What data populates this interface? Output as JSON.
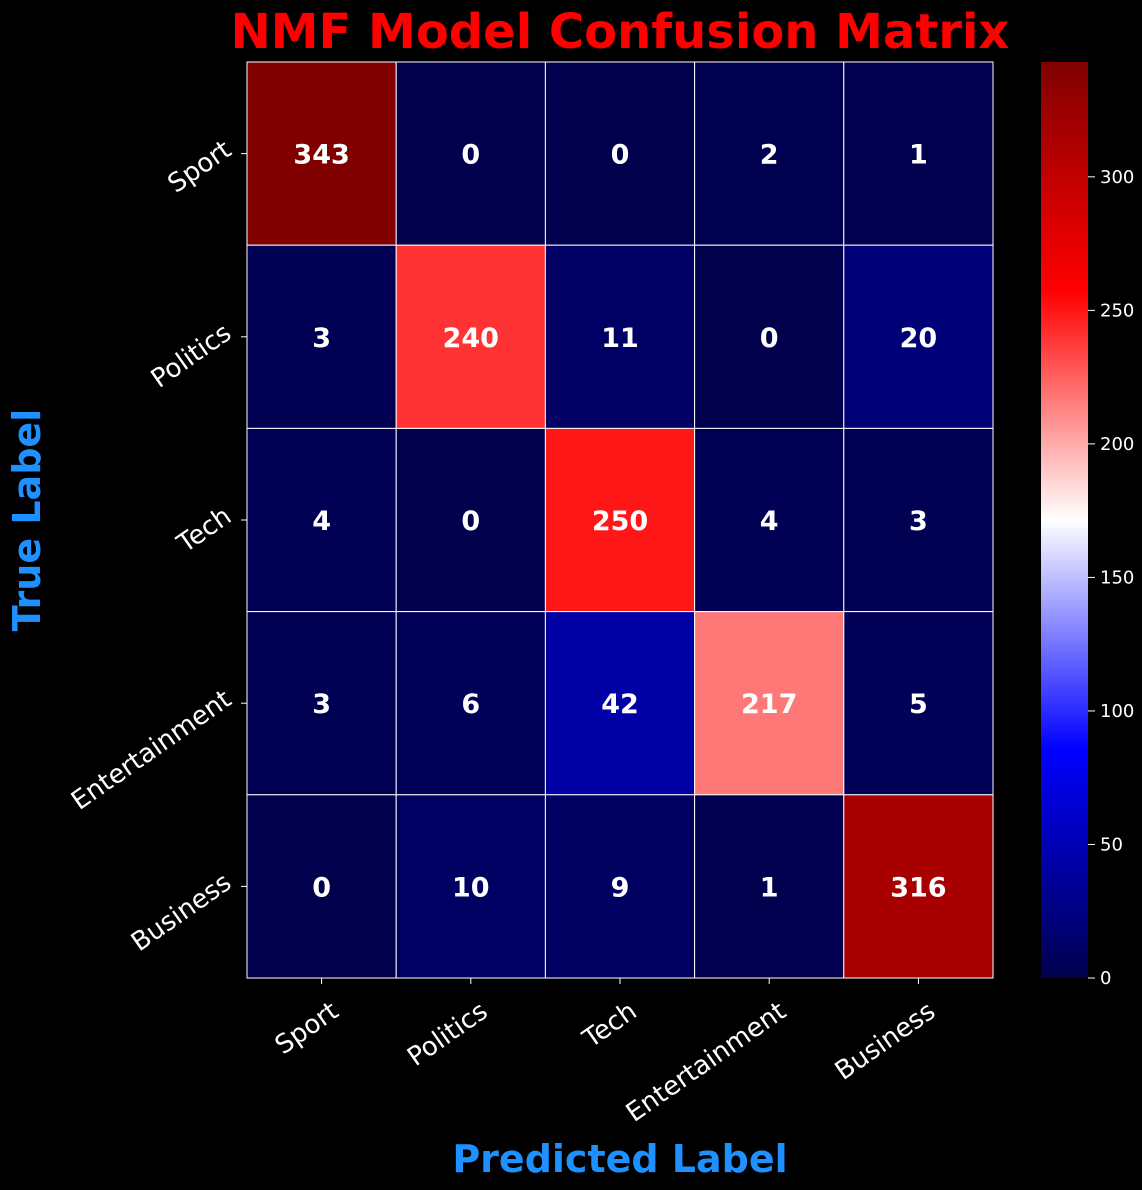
{
  "chart_data": {
    "type": "heatmap",
    "title": "NMF Model Confusion Matrix",
    "xlabel": "Predicted Label",
    "ylabel": "True Label",
    "x_categories": [
      "Sport",
      "Politics",
      "Tech",
      "Entertainment",
      "Business"
    ],
    "y_categories": [
      "Sport",
      "Politics",
      "Tech",
      "Entertainment",
      "Business"
    ],
    "matrix": [
      [
        343,
        0,
        0,
        2,
        1
      ],
      [
        3,
        240,
        11,
        0,
        20
      ],
      [
        4,
        0,
        250,
        4,
        3
      ],
      [
        3,
        6,
        42,
        217,
        5
      ],
      [
        0,
        10,
        9,
        1,
        316
      ]
    ],
    "colormap": "seismic",
    "vmin": 0,
    "vmax": 343,
    "colorbar_ticks": [
      0,
      50,
      100,
      150,
      200,
      250,
      300
    ],
    "grid": true,
    "colors": {
      "background": "#000000",
      "title": "#ff0000",
      "axis_label": "#1e90ff",
      "tick_text": "#ffffff",
      "cell_text": "#ffffff",
      "cell_border": "#ffffff"
    }
  }
}
